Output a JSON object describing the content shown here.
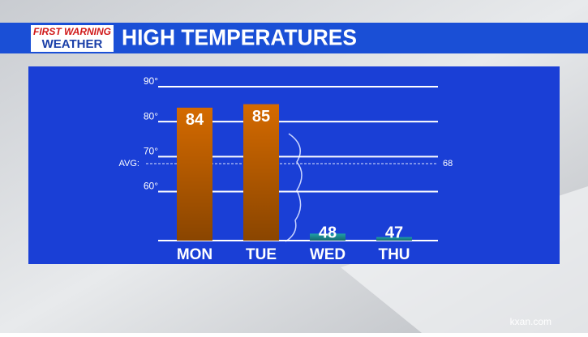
{
  "header": {
    "logo_top": "FIRST WARNING",
    "logo_bottom": "WEATHER"
  },
  "chart_data": {
    "type": "bar",
    "title": "HIGH TEMPERATURES",
    "categories": [
      "MON",
      "TUE",
      "WED",
      "THU"
    ],
    "values": [
      84,
      85,
      48,
      47
    ],
    "colors": [
      "#d46a00",
      "#d46a00",
      "#1fa0a8",
      "#1fa0a8"
    ],
    "ylim": [
      46,
      90
    ],
    "yticks": [
      {
        "value": 60,
        "label": "60°"
      },
      {
        "value": 70,
        "label": "70°"
      },
      {
        "value": 80,
        "label": "80°"
      },
      {
        "value": 90,
        "label": "90°"
      }
    ],
    "grid": true,
    "average": {
      "label": "AVG:",
      "value": 68
    }
  },
  "watermark": "kxan.com"
}
